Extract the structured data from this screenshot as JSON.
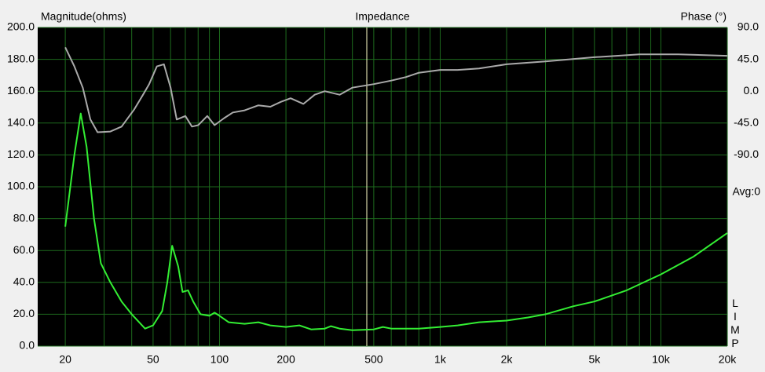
{
  "chart_data": {
    "type": "line",
    "title": "Impedance",
    "ylabel": "Magnitude(ohms)",
    "y2label": "Phase (°)",
    "annotation": "Avg:0",
    "side_label": "LIMP",
    "log_x": true,
    "grid": true,
    "xlim": [
      15,
      20000
    ],
    "xticks": [
      20,
      50,
      100,
      200,
      500,
      {
        "value": 1000,
        "label": "1k"
      },
      {
        "value": 2000,
        "label": "2k"
      },
      {
        "value": 5000,
        "label": "5k"
      },
      {
        "value": 10000,
        "label": "10k"
      },
      {
        "value": 20000,
        "label": "20k"
      }
    ],
    "xgrid": [
      30,
      40,
      60,
      70,
      80,
      90,
      300,
      400,
      600,
      700,
      800,
      900,
      3000,
      4000,
      6000,
      7000,
      8000,
      9000
    ],
    "ylim": [
      0,
      200
    ],
    "yticks": [
      {
        "value": 0,
        "label": "0.0"
      },
      {
        "value": 20,
        "label": "20.0"
      },
      {
        "value": 40,
        "label": "40.0"
      },
      {
        "value": 60,
        "label": "60.0"
      },
      {
        "value": 80,
        "label": "80.0"
      },
      {
        "value": 100,
        "label": "100.0"
      },
      {
        "value": 120,
        "label": "120.0"
      },
      {
        "value": 140,
        "label": "140.0"
      },
      {
        "value": 160,
        "label": "160.0"
      },
      {
        "value": 180,
        "label": "180.0"
      },
      {
        "value": 200,
        "label": "200.0"
      }
    ],
    "y2lim": [
      -360,
      90
    ],
    "y2ticks": [
      {
        "value": 90,
        "label": "90.0"
      },
      {
        "value": 45,
        "label": "45.0"
      },
      {
        "value": 0,
        "label": "0.0"
      },
      {
        "value": -45,
        "label": "-45.0"
      },
      {
        "value": -90,
        "label": "-90.0"
      }
    ],
    "series": [
      {
        "color": "#33ee33",
        "x": [
          20,
          22,
          23.5,
          25,
          27,
          29,
          32,
          36,
          40,
          46,
          50,
          55,
          58,
          61,
          65,
          68,
          72,
          76,
          82,
          90,
          95,
          100,
          110,
          130,
          150,
          170,
          200,
          230,
          260,
          300,
          320,
          350,
          400,
          500,
          550,
          600,
          800,
          1000,
          1200,
          1500,
          2000,
          2500,
          3000,
          4000,
          5000,
          7000,
          10000,
          14000,
          20000
        ],
        "values": [
          75,
          120,
          146,
          125,
          80,
          52,
          40,
          28,
          20,
          11,
          13,
          22,
          40,
          63,
          50,
          34,
          35,
          28,
          20,
          19,
          21,
          19,
          15,
          14,
          15,
          13,
          12,
          13,
          10.5,
          11,
          12.5,
          11,
          10,
          10.5,
          12,
          11,
          11,
          12,
          13,
          15,
          16,
          18,
          20,
          25,
          28,
          35,
          45,
          56,
          71
        ]
      },
      {
        "color": "#aaaaaa",
        "axis": "y2",
        "x": [
          20,
          22,
          24,
          26,
          28,
          32,
          36,
          41,
          45,
          48,
          52,
          56,
          60,
          64,
          70,
          75,
          80,
          88,
          95,
          105,
          115,
          130,
          150,
          170,
          190,
          210,
          240,
          270,
          300,
          350,
          400,
          500,
          600,
          700,
          800,
          1000,
          1200,
          1500,
          2000,
          3000,
          5000,
          8000,
          12000,
          20000
        ],
        "values": [
          62,
          35,
          5,
          -40,
          -58,
          -57,
          -50,
          -26,
          -5,
          10,
          35,
          38,
          5,
          -40,
          -35,
          -50,
          -48,
          -35,
          -48,
          -38,
          -30,
          -27,
          -20,
          -22,
          -15,
          -10,
          -18,
          -5,
          0,
          -5,
          5,
          10,
          15,
          20,
          26,
          30,
          30,
          32,
          38,
          42,
          48,
          52,
          52,
          50
        ]
      }
    ]
  }
}
